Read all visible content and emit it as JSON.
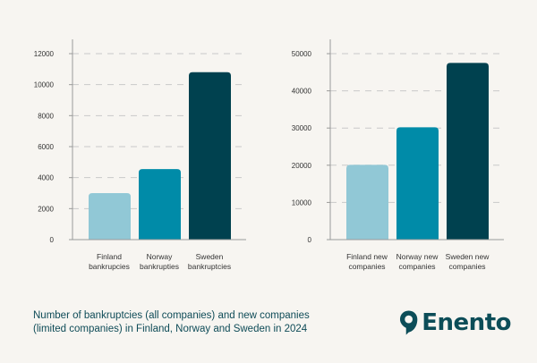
{
  "chart_data": [
    {
      "type": "bar",
      "categories": [
        "Finland bankrupcies",
        "Norway bankrupties",
        "Sweden bankruptcies"
      ],
      "category_lines": [
        [
          "Finland",
          "bankrupcies"
        ],
        [
          "Norway",
          "bankrupties"
        ],
        [
          "Sweden",
          "bankruptcies"
        ]
      ],
      "values": [
        3000,
        4550,
        10800
      ],
      "colors": [
        "#91c8d6",
        "#008ba8",
        "#00414f"
      ],
      "ylim": [
        0,
        12000
      ],
      "yticks": [
        0,
        2000,
        4000,
        6000,
        8000,
        10000,
        12000
      ],
      "grid": true
    },
    {
      "type": "bar",
      "categories": [
        "Finland new companies",
        "Norway new companies",
        "Sweden new companies"
      ],
      "category_lines": [
        [
          "Finland new",
          "companies"
        ],
        [
          "Norway new",
          "companies"
        ],
        [
          "Sweden new",
          "companies"
        ]
      ],
      "values": [
        20100,
        30200,
        47500
      ],
      "colors": [
        "#91c8d6",
        "#008ba8",
        "#00414f"
      ],
      "ylim": [
        0,
        50000
      ],
      "yticks": [
        0,
        10000,
        20000,
        30000,
        40000,
        50000
      ],
      "grid": true
    }
  ],
  "caption": {
    "line1": "Number of bankruptcies (all companies) and new companies",
    "line2": "(limited companies) in Finland, Norway and Sweden in 2024"
  },
  "brand": {
    "name": "Enento",
    "logo_icon": "location-pin-icon",
    "color": "#0c4d58"
  },
  "colors": {
    "background": "#f7f5f1",
    "axis": "#9a9a9a",
    "grid": "#c9c9c9",
    "tick_text": "#333333"
  }
}
